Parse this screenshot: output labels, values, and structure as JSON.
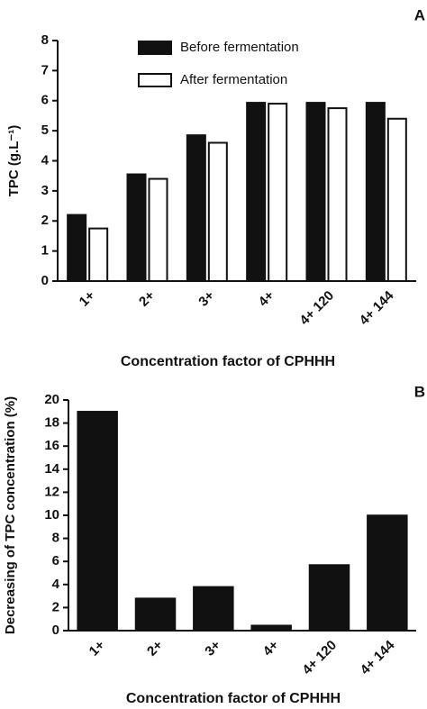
{
  "chart_data": [
    {
      "type": "bar",
      "panel": "A",
      "xlabel": "Concentration factor of CPHHH",
      "ylabel": "TPC (g.L⁻¹)",
      "categories": [
        "1+",
        "2+",
        "3+",
        "4+",
        "4+ 120",
        "4+ 144"
      ],
      "series": [
        {
          "name": "Before fermentation",
          "color": "#111111",
          "values": [
            2.2,
            3.55,
            4.85,
            5.93,
            5.93,
            5.93
          ]
        },
        {
          "name": "After fermentation",
          "color": "#ffffff",
          "values": [
            1.75,
            3.4,
            4.6,
            5.9,
            5.75,
            5.4
          ]
        }
      ],
      "ylim": [
        0,
        8
      ],
      "yticks": [
        0,
        1,
        2,
        3,
        4,
        5,
        6,
        7,
        8
      ],
      "legend": "upper left",
      "grid": false
    },
    {
      "type": "bar",
      "panel": "B",
      "xlabel": "Concentration factor of CPHHH",
      "ylabel": "Decreasing of TPC concentration (%)",
      "categories": [
        "1+",
        "2+",
        "3+",
        "4+",
        "4+ 120",
        "4+ 144"
      ],
      "values": [
        19.0,
        2.8,
        3.8,
        0.45,
        5.7,
        10.0
      ],
      "color": "#111111",
      "ylim": [
        0,
        20
      ],
      "yticks": [
        0,
        2,
        4,
        6,
        8,
        10,
        12,
        14,
        16,
        18,
        20
      ],
      "grid": false
    }
  ]
}
